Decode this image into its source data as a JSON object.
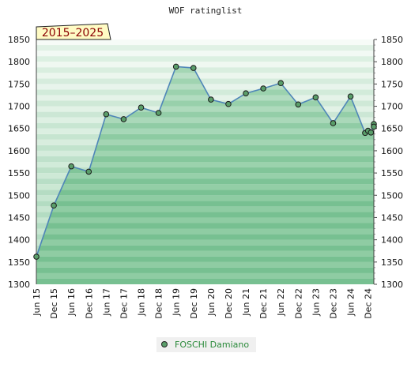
{
  "chart_data": {
    "type": "area",
    "title": "WOF ratinglist",
    "period_badge": "2015–2025",
    "ylim": [
      1300,
      1850
    ],
    "y_ticks": [
      1300,
      1350,
      1400,
      1450,
      1500,
      1550,
      1600,
      1650,
      1700,
      1750,
      1800,
      1850
    ],
    "x_ticks": [
      "Jun 15",
      "Dec 15",
      "Jun 16",
      "Dec 16",
      "Jun 17",
      "Dec 17",
      "Jun 18",
      "Dec 18",
      "Jun 19",
      "Dec 19",
      "Jun 20",
      "Dec 20",
      "Jun 21",
      "Dec 21",
      "Jun 22",
      "Dec 22",
      "Jun 23",
      "Dec 23",
      "Jun 24",
      "Dec 24"
    ],
    "x_range": [
      "2015-06",
      "2025-02"
    ],
    "series": [
      {
        "name": "FOSCHI Damiano",
        "color": "#5a9e6a",
        "points": [
          {
            "x": "2015-06",
            "y": 1362
          },
          {
            "x": "2015-12",
            "y": 1477
          },
          {
            "x": "2016-06",
            "y": 1565
          },
          {
            "x": "2016-12",
            "y": 1553
          },
          {
            "x": "2017-06",
            "y": 1682
          },
          {
            "x": "2017-12",
            "y": 1671
          },
          {
            "x": "2018-06",
            "y": 1697
          },
          {
            "x": "2018-12",
            "y": 1685
          },
          {
            "x": "2019-06",
            "y": 1789
          },
          {
            "x": "2019-12",
            "y": 1786
          },
          {
            "x": "2020-06",
            "y": 1715
          },
          {
            "x": "2020-12",
            "y": 1705
          },
          {
            "x": "2021-06",
            "y": 1729
          },
          {
            "x": "2021-12",
            "y": 1740
          },
          {
            "x": "2022-06",
            "y": 1752
          },
          {
            "x": "2022-12",
            "y": 1704
          },
          {
            "x": "2023-06",
            "y": 1720
          },
          {
            "x": "2023-12",
            "y": 1662
          },
          {
            "x": "2024-06",
            "y": 1722
          },
          {
            "x": "2024-11",
            "y": 1640
          },
          {
            "x": "2024-12",
            "y": 1645
          },
          {
            "x": "2025-01",
            "y": 1641
          },
          {
            "x": "2025-02",
            "y": 1660
          },
          {
            "x": "2025-02",
            "y": 1654
          }
        ]
      }
    ],
    "legend": "bottom-center",
    "colors": {
      "line": "#4f86b8",
      "area": "#7cc494",
      "band_dark": "#78c092",
      "band_light": "#e6f3e9",
      "marker": "#5a9e6a",
      "badge_bg": "#fffbc4",
      "badge_text": "#8a0000"
    }
  }
}
